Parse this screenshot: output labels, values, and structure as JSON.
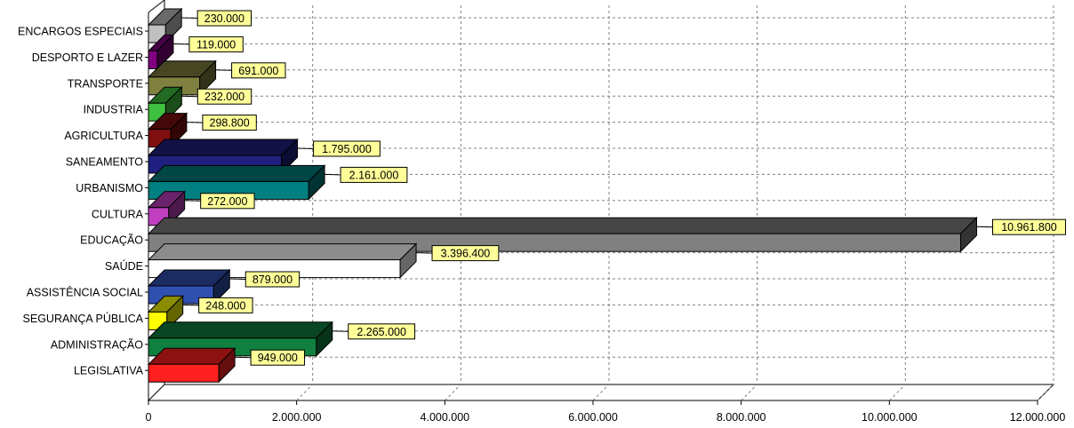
{
  "chart_data": {
    "type": "bar",
    "orientation": "horizontal",
    "style": "3d",
    "categories": [
      "ENCARGOS ESPECIAIS",
      "DESPORTO E LAZER",
      "TRANSPORTE",
      "INDUSTRIA",
      "AGRICULTURA",
      "SANEAMENTO",
      "URBANISMO",
      "CULTURA",
      "EDUCAÇÃO",
      "SAÚDE",
      "ASSISTÊNCIA SOCIAL",
      "SEGURANÇA PÚBLICA",
      "ADMINISTRAÇÃO",
      "LEGISLATIVA"
    ],
    "values": [
      230000,
      119000,
      691000,
      232000,
      298800,
      1795000,
      2161000,
      272000,
      10961800,
      3396400,
      879000,
      248000,
      2265000,
      949000
    ],
    "value_labels": [
      "230.000",
      "119.000",
      "691.000",
      "232.000",
      "298.800",
      "1.795.000",
      "2.161.000",
      "272.000",
      "10.961.800",
      "3.396.400",
      "879.000",
      "248.000",
      "2.265.000",
      "949.000"
    ],
    "colors": [
      "#c0c0c0",
      "#800080",
      "#808040",
      "#40c040",
      "#801010",
      "#202080",
      "#008080",
      "#c040c0",
      "#808080",
      "#ffffff",
      "#3050b0",
      "#ffff00",
      "#108040",
      "#ff2020"
    ],
    "xlim": [
      0,
      12000000
    ],
    "xticks": [
      0,
      2000000,
      4000000,
      6000000,
      8000000,
      10000000,
      12000000
    ],
    "xtick_labels": [
      "0",
      "2.000.000",
      "4.000.000",
      "6.000.000",
      "8.000.000",
      "10.000.000",
      "12.000.000"
    ],
    "grid": true,
    "label_box_color": "#ffff99",
    "title": "",
    "xlabel": "",
    "ylabel": ""
  }
}
